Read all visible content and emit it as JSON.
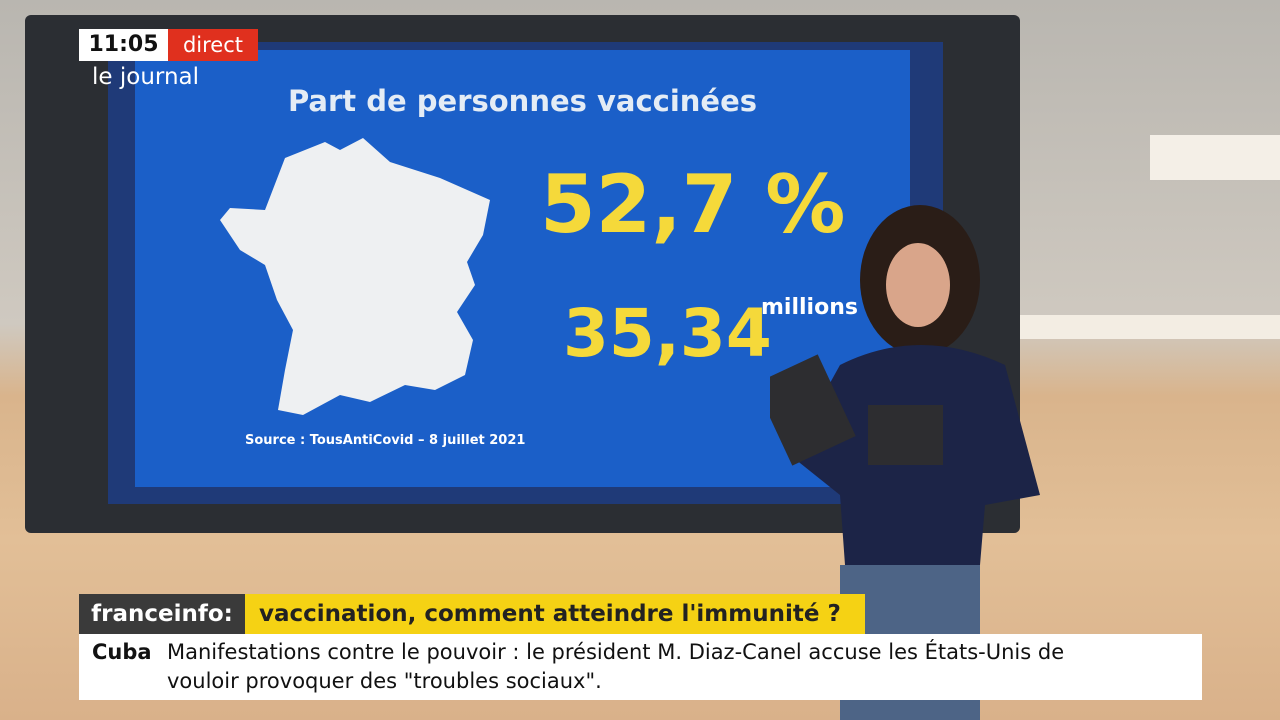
{
  "overlay": {
    "time": "11:05",
    "live": "direct",
    "program": "le journal"
  },
  "screen": {
    "title": "Part de personnes vaccinées",
    "share": "52,7 %",
    "count": "35,34",
    "count_unit": "millions",
    "source": "Source : TousAntiCovid – 8 juillet 2021"
  },
  "banner": {
    "brand": "franceinfo:",
    "headline": "vaccination, comment atteindre l'immunité ?"
  },
  "ticker": {
    "topic": "Cuba",
    "lines": [
      "Manifestations contre le pouvoir : le président M. Diaz-Canel accuse les États-Unis de",
      "vouloir provoquer des \"troubles sociaux\"."
    ]
  }
}
